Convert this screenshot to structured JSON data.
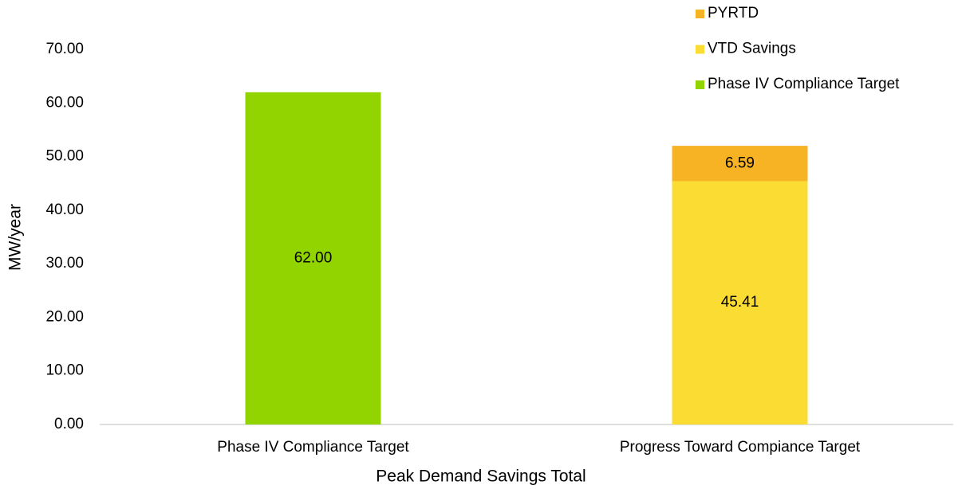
{
  "chart_data": {
    "type": "stacked_bar",
    "x_label": "Peak Demand Savings Total",
    "y_label": "MW/year",
    "categories": [
      "Phase IV Compliance Target",
      "Progress Toward Compiance Target"
    ],
    "series": [
      {
        "name": "Phase IV Compliance Target",
        "color": "#92d400",
        "values": [
          62.0,
          null
        ],
        "value_labels": [
          "62.00",
          null
        ]
      },
      {
        "name": "VTD Savings",
        "color": "#fbdc33",
        "values": [
          null,
          45.41
        ],
        "value_labels": [
          null,
          "45.41"
        ]
      },
      {
        "name": "PYRTD",
        "color": "#f7b323",
        "values": [
          null,
          6.59
        ],
        "value_labels": [
          null,
          "6.59"
        ]
      }
    ],
    "ylim": [
      0,
      70
    ],
    "yticks": [
      {
        "value": 0,
        "label": "0.00"
      },
      {
        "value": 10,
        "label": "10.00"
      },
      {
        "value": 20,
        "label": "20.00"
      },
      {
        "value": 30,
        "label": "30.00"
      },
      {
        "value": 40,
        "label": "40.00"
      },
      {
        "value": 50,
        "label": "50.00"
      },
      {
        "value": 60,
        "label": "60.00"
      },
      {
        "value": 70,
        "label": "70.00"
      }
    ],
    "grid": false,
    "legend": "top-right"
  }
}
